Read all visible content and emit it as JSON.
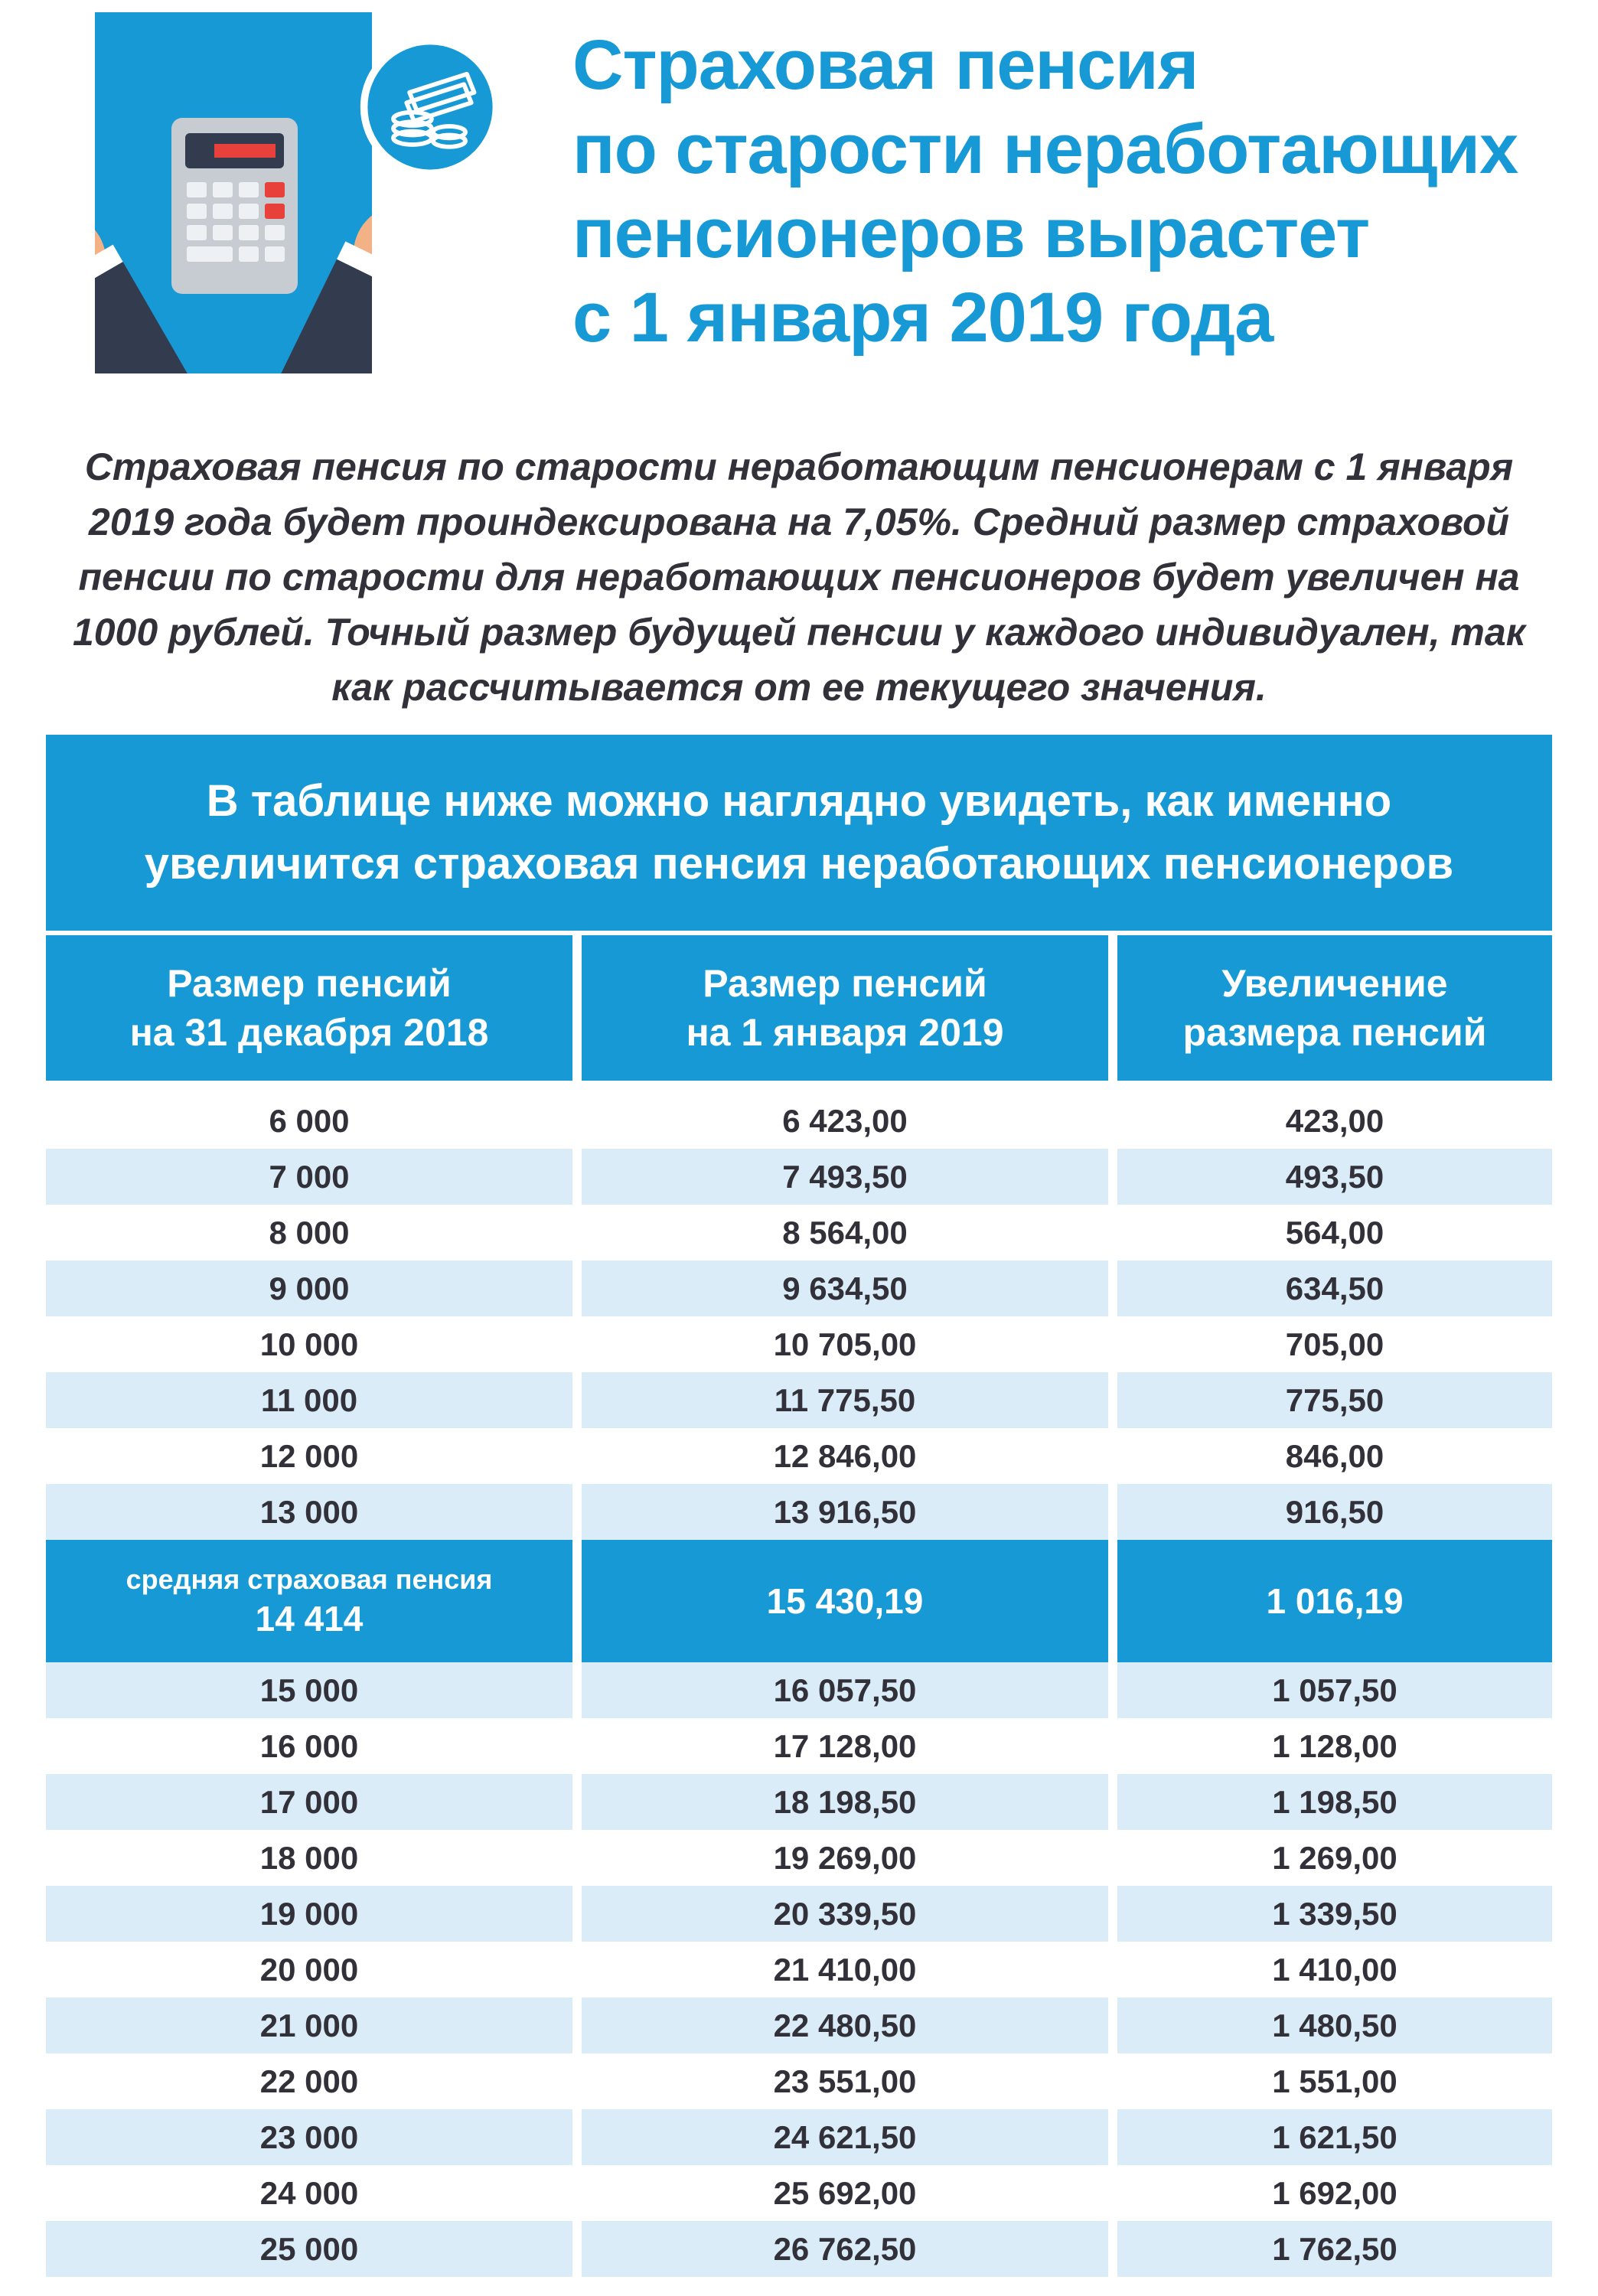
{
  "header": {
    "title_lines": [
      "Страховая пенсия",
      "по старости неработающих",
      "пенсионеров вырастет",
      "с 1 января 2019 года"
    ]
  },
  "intro": {
    "text": "Страховая пенсия по старости неработающим пенсионерам с 1 января 2019 года будет проиндексирована на 7,05%. Средний размер страховой пенсии по старости для неработающих пенсионеров будет увеличен на 1000 рублей. Точный размер будущей пенсии у каждого индивидуален, так как рассчитывается от ее текущего значения."
  },
  "banner": {
    "text": "В таблице ниже можно наглядно увидеть, как именно увеличится страховая пенсия неработающих пенсионеров"
  },
  "table": {
    "columns": [
      {
        "line1": "Размер пенсий",
        "line2": "на 31 декабря 2018"
      },
      {
        "line1": "Размер пенсий",
        "line2": "на 1 января 2019"
      },
      {
        "line1": "Увеличение",
        "line2": "размера пенсий"
      }
    ],
    "rows": [
      {
        "old": "6 000",
        "new": "6 423,00",
        "inc": "423,00"
      },
      {
        "old": "7 000",
        "new": "7 493,50",
        "inc": "493,50"
      },
      {
        "old": "8 000",
        "new": "8 564,00",
        "inc": "564,00"
      },
      {
        "old": "9 000",
        "new": "9 634,50",
        "inc": "634,50"
      },
      {
        "old": "10 000",
        "new": "10 705,00",
        "inc": "705,00"
      },
      {
        "old": "11 000",
        "new": "11 775,50",
        "inc": "775,50"
      },
      {
        "old": "12 000",
        "new": "12 846,00",
        "inc": "846,00"
      },
      {
        "old": "13 000",
        "new": "13 916,50",
        "inc": "916,50"
      },
      {
        "label": "средняя страховая пенсия",
        "old": "14 414",
        "new": "15 430,19",
        "inc": "1 016,19",
        "highlight": true
      },
      {
        "old": "15 000",
        "new": "16 057,50",
        "inc": "1 057,50"
      },
      {
        "old": "16 000",
        "new": "17 128,00",
        "inc": "1 128,00"
      },
      {
        "old": "17 000",
        "new": "18 198,50",
        "inc": "1 198,50"
      },
      {
        "old": "18 000",
        "new": "19 269,00",
        "inc": "1 269,00"
      },
      {
        "old": "19 000",
        "new": "20 339,50",
        "inc": "1 339,50"
      },
      {
        "old": "20 000",
        "new": "21 410,00",
        "inc": "1 410,00"
      },
      {
        "old": "21 000",
        "new": "22 480,50",
        "inc": "1 480,50"
      },
      {
        "old": "22 000",
        "new": "23 551,00",
        "inc": "1 551,00"
      },
      {
        "old": "23 000",
        "new": "24 621,50",
        "inc": "1 621,50"
      },
      {
        "old": "24 000",
        "new": "25 692,00",
        "inc": "1 692,00"
      },
      {
        "old": "25 000",
        "new": "26 762,50",
        "inc": "1 762,50"
      }
    ]
  },
  "icons": {
    "money_badge": "money-coins-icon",
    "illustration": "calculator-hands-illustration"
  },
  "colors": {
    "primary_blue": "#1799d5",
    "light_row": "#d9ecf8",
    "text_dark": "#32313a",
    "calc_body": "#c7ccd3",
    "calc_screen": "#333b4f",
    "accent_red": "#e8413c",
    "skin": "#f2b286",
    "sleeve_dark": "#333b4f"
  }
}
